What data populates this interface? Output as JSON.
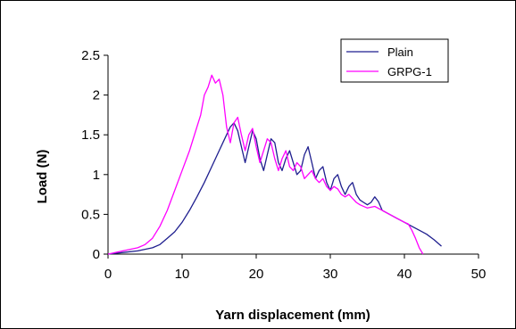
{
  "chart_data": {
    "type": "line",
    "xlabel": "Yarn displacement (mm)",
    "ylabel": "Load (N)",
    "xlim": [
      0,
      50
    ],
    "ylim": [
      0,
      2.5
    ],
    "xticks": [
      0,
      10,
      20,
      30,
      40,
      50
    ],
    "yticks": [
      0,
      0.5,
      1,
      1.5,
      2,
      2.5
    ],
    "grid": false,
    "legend_position": "top-right",
    "series": [
      {
        "name": "Plain",
        "color": "#1f1f8f",
        "x": [
          0,
          2,
          4,
          6,
          7,
          8,
          9,
          10,
          11,
          12,
          13,
          14,
          15,
          16,
          16.5,
          17,
          17.5,
          18,
          18.5,
          19,
          19.5,
          20,
          20.5,
          21,
          21.5,
          22,
          22.5,
          23,
          23.5,
          24,
          24.5,
          25,
          25.5,
          26,
          26.5,
          27,
          27.5,
          28,
          28.5,
          29,
          29.5,
          30,
          30.5,
          31,
          31.5,
          32,
          32.5,
          33,
          33.5,
          34,
          34.5,
          35,
          35.5,
          36,
          36.5,
          37,
          38,
          39,
          40,
          41,
          42,
          43,
          44,
          45
        ],
        "y": [
          0,
          0.02,
          0.04,
          0.08,
          0.12,
          0.2,
          0.28,
          0.4,
          0.55,
          0.72,
          0.9,
          1.1,
          1.3,
          1.5,
          1.6,
          1.65,
          1.55,
          1.35,
          1.15,
          1.35,
          1.55,
          1.45,
          1.2,
          1.05,
          1.25,
          1.45,
          1.4,
          1.15,
          1.05,
          1.2,
          1.3,
          1.15,
          1.0,
          1.05,
          1.25,
          1.35,
          1.15,
          0.95,
          1.05,
          1.1,
          0.9,
          0.8,
          0.95,
          1.0,
          0.85,
          0.75,
          0.85,
          0.9,
          0.75,
          0.68,
          0.65,
          0.62,
          0.65,
          0.72,
          0.66,
          0.55,
          0.5,
          0.45,
          0.4,
          0.35,
          0.3,
          0.25,
          0.18,
          0.1
        ]
      },
      {
        "name": "GRPG-1",
        "color": "#ff00ff",
        "x": [
          0,
          2,
          4,
          5,
          6,
          7,
          8,
          9,
          10,
          11,
          12,
          12.5,
          13,
          13.5,
          14,
          14.5,
          15,
          15.5,
          16,
          16.5,
          17,
          17.5,
          18,
          18.5,
          19,
          19.5,
          20,
          20.5,
          21,
          21.5,
          22,
          22.5,
          23,
          23.5,
          24,
          24.5,
          25,
          25.5,
          26,
          26.5,
          27,
          27.5,
          28,
          28.5,
          29,
          29.5,
          30,
          30.5,
          31,
          31.5,
          32,
          32.5,
          33,
          33.5,
          34,
          35,
          36,
          37,
          38,
          39,
          40,
          40.5,
          41,
          41.5,
          42,
          42.5
        ],
        "y": [
          0,
          0.04,
          0.08,
          0.12,
          0.2,
          0.35,
          0.55,
          0.8,
          1.05,
          1.3,
          1.6,
          1.75,
          2.0,
          2.1,
          2.25,
          2.15,
          2.2,
          2.0,
          1.6,
          1.4,
          1.65,
          1.72,
          1.5,
          1.3,
          1.5,
          1.58,
          1.35,
          1.15,
          1.3,
          1.45,
          1.4,
          1.2,
          1.05,
          1.2,
          1.3,
          1.1,
          1.05,
          1.15,
          1.1,
          0.95,
          1.0,
          1.05,
          0.95,
          0.9,
          0.95,
          0.85,
          0.8,
          0.85,
          0.82,
          0.75,
          0.72,
          0.75,
          0.7,
          0.65,
          0.62,
          0.58,
          0.6,
          0.55,
          0.5,
          0.45,
          0.4,
          0.38,
          0.3,
          0.2,
          0.08,
          0
        ]
      }
    ]
  }
}
